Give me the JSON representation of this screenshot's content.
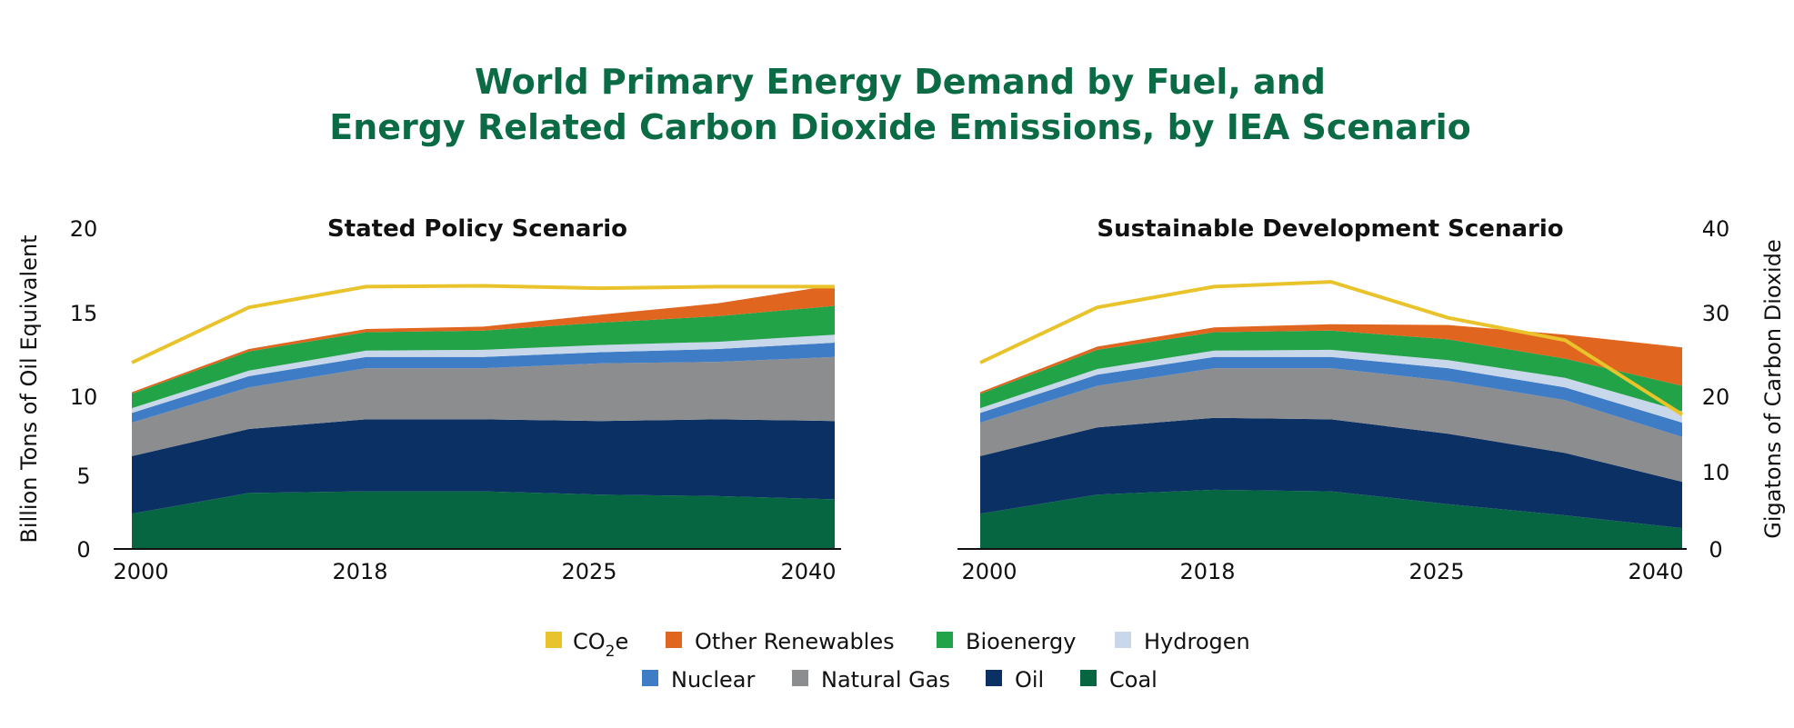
{
  "title_lines": [
    "World Primary Energy Demand by Fuel, and",
    "Energy Related Carbon Dioxide Emissions, by IEA Scenario"
  ],
  "axes": {
    "left_label": "Billion Tons of Oil Equivalent",
    "right_label": "Gigatons of Carbon Dioxide",
    "left_ticks": [
      "0",
      "5",
      "10",
      "15",
      "20"
    ],
    "right_ticks": [
      "0",
      "10",
      "20",
      "30",
      "40"
    ],
    "x_ticks": [
      "2000",
      "2018",
      "2025",
      "2040"
    ]
  },
  "legend": {
    "co2_main": "CO",
    "co2_sub": "2",
    "co2_tail": "e",
    "items": [
      {
        "key": "renewables",
        "label": "Other Renewables"
      },
      {
        "key": "bioenergy",
        "label": "Bioenergy"
      },
      {
        "key": "hydrogen",
        "label": "Hydrogen"
      },
      {
        "key": "nuclear",
        "label": "Nuclear"
      },
      {
        "key": "gas",
        "label": "Natural Gas"
      },
      {
        "key": "oil",
        "label": "Oil"
      },
      {
        "key": "coal",
        "label": "Coal"
      }
    ]
  },
  "colors": {
    "coal": "#066642",
    "oil": "#0b3064",
    "gas": "#8c8d8f",
    "nuclear": "#3e7cc6",
    "hydrogen": "#c9d7eb",
    "bioenergy": "#22a347",
    "renewables": "#e0651f",
    "co2": "#e9c32c",
    "title": "#0b6b45"
  },
  "chart_data": [
    {
      "type": "area",
      "title": "Stated Policy Scenario",
      "x": [
        0,
        1,
        2,
        3,
        4,
        5,
        6
      ],
      "x_tick_labels": {
        "0": "2000",
        "2": "2018",
        "4": "2025",
        "6": "2040"
      },
      "ylim": [
        0,
        20
      ],
      "y2lim": [
        0,
        40
      ],
      "ylabel": "Billion Tons of Oil Equivalent",
      "y2label": "Gigatons of Carbon Dioxide",
      "series": [
        {
          "name": "Coal",
          "key": "coal",
          "values": [
            2.2,
            3.5,
            3.6,
            3.6,
            3.4,
            3.3,
            3.1
          ]
        },
        {
          "name": "Oil",
          "key": "oil",
          "values": [
            3.6,
            4.0,
            4.5,
            4.5,
            4.6,
            4.8,
            4.9
          ]
        },
        {
          "name": "Natural Gas",
          "key": "gas",
          "values": [
            2.1,
            2.6,
            3.2,
            3.2,
            3.6,
            3.6,
            4.0
          ]
        },
        {
          "name": "Nuclear",
          "key": "nuclear",
          "values": [
            0.6,
            0.7,
            0.7,
            0.7,
            0.7,
            0.8,
            0.9
          ]
        },
        {
          "name": "Hydrogen",
          "key": "hydrogen",
          "values": [
            0.3,
            0.35,
            0.4,
            0.45,
            0.45,
            0.45,
            0.5
          ]
        },
        {
          "name": "Bioenergy",
          "key": "bioenergy",
          "values": [
            0.9,
            1.2,
            1.15,
            1.2,
            1.4,
            1.6,
            1.8
          ]
        },
        {
          "name": "Other Renewables",
          "key": "renewables",
          "values": [
            0.1,
            0.15,
            0.2,
            0.25,
            0.5,
            0.8,
            1.3
          ]
        }
      ],
      "co2": {
        "name": "CO2e",
        "values": [
          23.3,
          30.2,
          32.8,
          32.9,
          32.6,
          32.8,
          32.8
        ]
      }
    },
    {
      "type": "area",
      "title": "Sustainable Development Scenario",
      "x": [
        0,
        1,
        2,
        3,
        4,
        5,
        6
      ],
      "x_tick_labels": {
        "0": "2000",
        "2": "2018",
        "4": "2025",
        "6": "2040"
      },
      "ylim": [
        0,
        20
      ],
      "y2lim": [
        0,
        40
      ],
      "ylabel": "Billion Tons of Oil Equivalent",
      "y2label": "Gigatons of Carbon Dioxide",
      "series": [
        {
          "name": "Coal",
          "key": "coal",
          "values": [
            2.2,
            3.4,
            3.7,
            3.6,
            2.8,
            2.1,
            1.3
          ]
        },
        {
          "name": "Oil",
          "key": "oil",
          "values": [
            3.6,
            4.2,
            4.5,
            4.5,
            4.4,
            3.9,
            2.9
          ]
        },
        {
          "name": "Natural Gas",
          "key": "gas",
          "values": [
            2.1,
            2.6,
            3.1,
            3.2,
            3.3,
            3.3,
            2.8
          ]
        },
        {
          "name": "Nuclear",
          "key": "nuclear",
          "values": [
            0.6,
            0.7,
            0.7,
            0.7,
            0.8,
            0.8,
            0.9
          ]
        },
        {
          "name": "Hydrogen",
          "key": "hydrogen",
          "values": [
            0.3,
            0.35,
            0.4,
            0.45,
            0.5,
            0.6,
            0.7
          ]
        },
        {
          "name": "Bioenergy",
          "key": "bioenergy",
          "values": [
            0.9,
            1.2,
            1.15,
            1.2,
            1.3,
            1.2,
            1.6
          ]
        },
        {
          "name": "Other Renewables",
          "key": "renewables",
          "values": [
            0.1,
            0.2,
            0.3,
            0.4,
            0.9,
            1.5,
            2.4
          ]
        }
      ],
      "co2": {
        "name": "CO2e",
        "values": [
          23.3,
          30.2,
          32.8,
          33.4,
          28.9,
          26.1,
          16.8
        ]
      }
    }
  ]
}
